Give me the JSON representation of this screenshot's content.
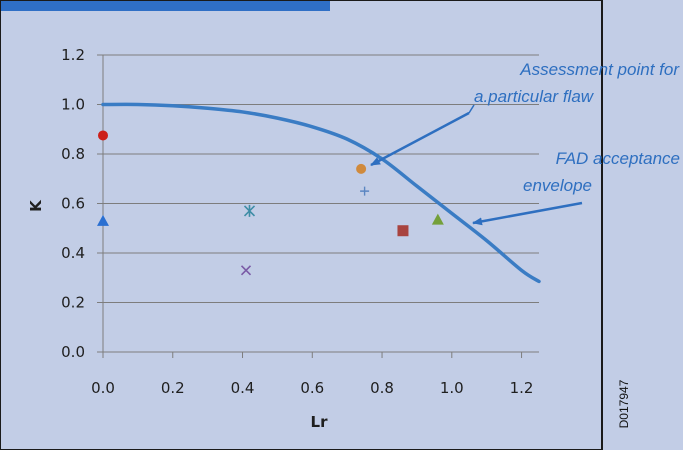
{
  "chart_data": {
    "type": "scatter",
    "title": "",
    "xlabel": "Lr",
    "ylabel": "K",
    "xlim": [
      0,
      1.25
    ],
    "ylim": [
      0,
      1.2
    ],
    "x_ticks": [
      "0.0",
      "0.2",
      "0.4",
      "0.6",
      "0.8",
      "1.0",
      "1.2"
    ],
    "y_ticks": [
      "0.0",
      "0.2",
      "0.4",
      "0.6",
      "0.8",
      "1.0",
      "1.2"
    ],
    "grid": "horizontal",
    "background_color": "#c2cde6",
    "series": [
      {
        "type": "line",
        "color": "#3a7cc4",
        "points": [
          [
            0.0,
            1.0
          ],
          [
            0.1,
            1.0
          ],
          [
            0.2,
            0.995
          ],
          [
            0.3,
            0.985
          ],
          [
            0.4,
            0.97
          ],
          [
            0.5,
            0.945
          ],
          [
            0.6,
            0.91
          ],
          [
            0.7,
            0.86
          ],
          [
            0.8,
            0.78
          ],
          [
            0.9,
            0.67
          ],
          [
            1.0,
            0.56
          ],
          [
            1.1,
            0.45
          ],
          [
            1.2,
            0.33
          ],
          [
            1.25,
            0.285
          ]
        ]
      },
      {
        "marker": "circle",
        "color": "#cc1f1a",
        "points": [
          [
            0.0,
            0.875
          ]
        ]
      },
      {
        "marker": "triangle",
        "color": "#2a6fd1",
        "points": [
          [
            0.0,
            0.53
          ]
        ]
      },
      {
        "marker": "asterisk",
        "color": "#3e8da6",
        "points": [
          [
            0.42,
            0.57
          ]
        ]
      },
      {
        "marker": "x",
        "color": "#7a5aa6",
        "points": [
          [
            0.41,
            0.33
          ]
        ]
      },
      {
        "marker": "circle",
        "color": "#d08a3c",
        "points": [
          [
            0.74,
            0.74
          ]
        ]
      },
      {
        "marker": "plus",
        "color": "#5b86c2",
        "points": [
          [
            0.75,
            0.65
          ]
        ]
      },
      {
        "marker": "square",
        "color": "#a8433f",
        "points": [
          [
            0.86,
            0.49
          ]
        ]
      },
      {
        "marker": "triangle",
        "color": "#74a03a",
        "points": [
          [
            0.96,
            0.535
          ]
        ]
      }
    ],
    "annotations": [
      {
        "lines": [
          "Assessment point for",
          "a.particular flaw"
        ],
        "color": "#2e6fc0"
      },
      {
        "lines": [
          "FAD acceptance",
          "envelope"
        ],
        "color": "#2e6fc0"
      }
    ]
  },
  "document_id": "D017947"
}
